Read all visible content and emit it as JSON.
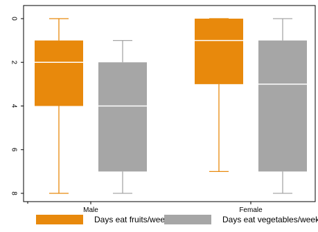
{
  "chart_data": {
    "type": "box",
    "categories": [
      "Male",
      "Female"
    ],
    "y_axis": {
      "min": 0,
      "max": 8,
      "reversed": true,
      "ticks": [
        0,
        2,
        4,
        6,
        8
      ],
      "tick_labels": [
        "0",
        "2",
        "4",
        "6",
        "8"
      ]
    },
    "series": [
      {
        "name": "Days eat fruits/week",
        "color": "#e8890c",
        "boxes": [
          {
            "category": "Male",
            "min": 0,
            "q1": 1,
            "median": 2,
            "q3": 4,
            "max": 8
          },
          {
            "category": "Female",
            "min": 0,
            "q1": 0,
            "median": 1,
            "q3": 3,
            "max": 7
          }
        ]
      },
      {
        "name": "Days eat vegetables/week",
        "color": "#a6a6a6",
        "boxes": [
          {
            "category": "Male",
            "min": 1,
            "q1": 2,
            "median": 4,
            "q3": 7,
            "max": 8
          },
          {
            "category": "Female",
            "min": 0,
            "q1": 1,
            "median": 3,
            "q3": 7,
            "max": 8
          }
        ]
      }
    ],
    "legend": {
      "position": "bottom",
      "entries": [
        "Days eat fruits/week",
        "Days eat vegetables/week"
      ]
    },
    "grid": false,
    "title": "",
    "xlabel": "",
    "ylabel": ""
  }
}
